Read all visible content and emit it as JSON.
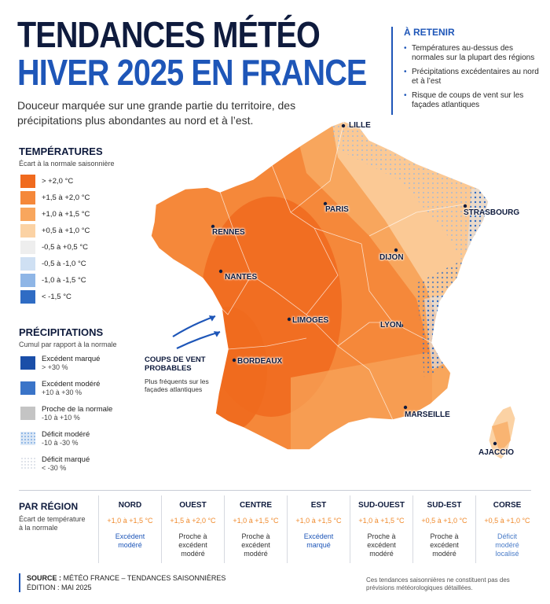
{
  "header": {
    "title_line1": "TENDANCES MÉTÉO",
    "title_line2": "HIVER 2025 EN FRANCE",
    "subtitle": "Douceur marquée sur une grande partie du territoire, des précipitations plus abondantes au nord et à l’est."
  },
  "retain": {
    "title": "À RETENIR",
    "items": [
      "Températures au-dessus des normales sur la plupart des régions",
      "Précipitations excédentaires au nord et à l’est",
      "Risque de coups de vent sur les façades atlantiques"
    ]
  },
  "temperatures": {
    "title": "TEMPÉRATURES",
    "subtitle": "Écart à la normale saisonnière",
    "items": [
      {
        "label": "> +2,0 °C",
        "color": "#f06a1e"
      },
      {
        "label": "+1,5 à +2,0 °C",
        "color": "#f5883a"
      },
      {
        "label": "+1,0 à +1,5 °C",
        "color": "#f8a65d"
      },
      {
        "label": "+0,5 à +1,0 °C",
        "color": "#fbd2a4"
      },
      {
        "label": "-0,5 à +0,5 °C",
        "color": "#eeeeee"
      },
      {
        "label": "-0,5 à -1,0 °C",
        "color": "#cfe0f3"
      },
      {
        "label": "-1,0 à -1,5 °C",
        "color": "#8fb6e6"
      },
      {
        "label": "< -1,5 °C",
        "color": "#2f6cc4"
      }
    ]
  },
  "precipitations": {
    "title": "PRÉCIPITATIONS",
    "subtitle": "Cumul par rapport à la normale",
    "items": [
      {
        "label": "Excédent marqué",
        "range": "> +30 %",
        "color": "#1a4ea8"
      },
      {
        "label": "Excédent modéré",
        "range": "+10 à +30 %",
        "color": "#3a74c8"
      },
      {
        "label": "Proche de la normale",
        "range": "-10 à +10 %",
        "color": "#c4c4c4"
      },
      {
        "label": "Déficit modéré",
        "range": "-10 à -30 %",
        "color": "#dce8f6"
      },
      {
        "label": "Déficit marqué",
        "range": "< -30 %",
        "color": "#ffffff"
      }
    ]
  },
  "map": {
    "cities": [
      {
        "name": "LILLE"
      },
      {
        "name": "PARIS"
      },
      {
        "name": "STRASBOURG"
      },
      {
        "name": "RENNES"
      },
      {
        "name": "NANTES"
      },
      {
        "name": "DIJON"
      },
      {
        "name": "LIMOGES"
      },
      {
        "name": "LYON"
      },
      {
        "name": "BORDEAUX"
      },
      {
        "name": "MARSEILLE"
      },
      {
        "name": "AJACCIO"
      }
    ],
    "wind": {
      "title": "COUPS DE VENT PROBABLES",
      "subtitle": "Plus fréquents sur les façades atlantiques"
    }
  },
  "regions": {
    "title": "PAR RÉGION",
    "subtitle": "Écart de température à la normale",
    "items": [
      {
        "name": "NORD",
        "temp": "+1,0 à +1,5 °C",
        "prec": "Excédent modéré",
        "style": "blue"
      },
      {
        "name": "OUEST",
        "temp": "+1,5 à +2,0 °C",
        "prec": "Proche à excédent modéré",
        "style": ""
      },
      {
        "name": "CENTRE",
        "temp": "+1,0 à +1,5 °C",
        "prec": "Proche à excédent modéré",
        "style": ""
      },
      {
        "name": "EST",
        "temp": "+1,0 à +1,5 °C",
        "prec": "Excédent marqué",
        "style": "blue"
      },
      {
        "name": "SUD-OUEST",
        "temp": "+1,0 à +1,5 °C",
        "prec": "Proche à excédent modéré",
        "style": ""
      },
      {
        "name": "SUD-EST",
        "temp": "+0,5 à +1,0 °C",
        "prec": "Proche à excédent modéré",
        "style": ""
      },
      {
        "name": "CORSE",
        "temp": "+0,5 à +1,0 °C",
        "prec": "Déficit modéré localisé",
        "style": "lblue"
      }
    ]
  },
  "footer": {
    "source_label": "SOURCE :",
    "source": "MÉTÉO FRANCE – TENDANCES SAISONNIÈRES",
    "edition": "ÉDITION : MAI 2025",
    "disclaimer": "Ces tendances saisonnières ne constituent pas des prévisions météorologiques détaillées."
  }
}
